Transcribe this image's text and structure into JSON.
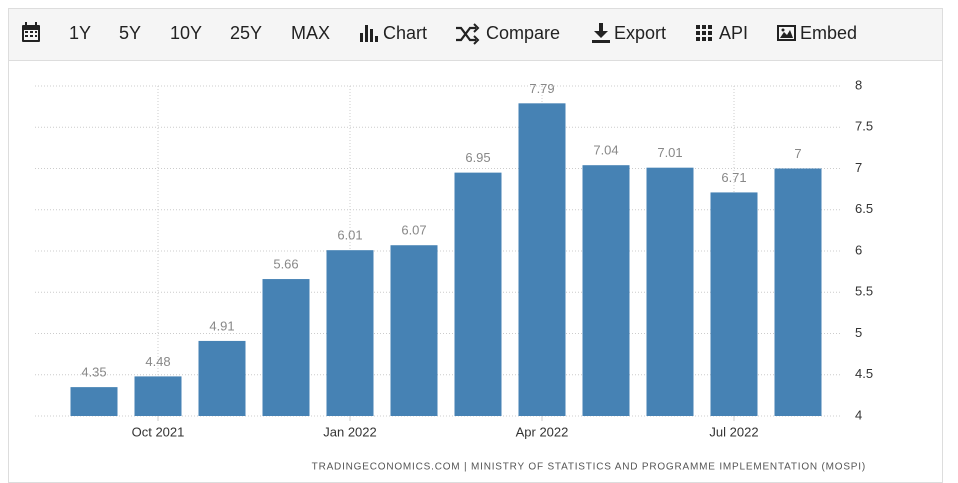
{
  "toolbar": {
    "items": [
      "1Y",
      "5Y",
      "10Y",
      "25Y",
      "MAX",
      "Chart",
      "Compare",
      "Export",
      "API",
      "Embed"
    ]
  },
  "chart_data": {
    "type": "bar",
    "categories": [
      null,
      "Oct 2021",
      null,
      null,
      "Jan 2022",
      null,
      null,
      "Apr 2022",
      null,
      null,
      "Jul 2022",
      null
    ],
    "values": [
      4.35,
      4.48,
      4.91,
      5.66,
      6.01,
      6.07,
      6.95,
      7.79,
      7.04,
      7.01,
      6.71,
      7
    ],
    "color": "#4682b4",
    "ylim": [
      4,
      8
    ],
    "yticks": [
      4,
      4.5,
      5,
      5.5,
      6,
      6.5,
      7,
      7.5,
      8
    ],
    "grid": true,
    "source": "TRADINGECONOMICS.COM | MINISTRY OF STATISTICS AND PROGRAMME IMPLEMENTATION (MOSPI)"
  }
}
